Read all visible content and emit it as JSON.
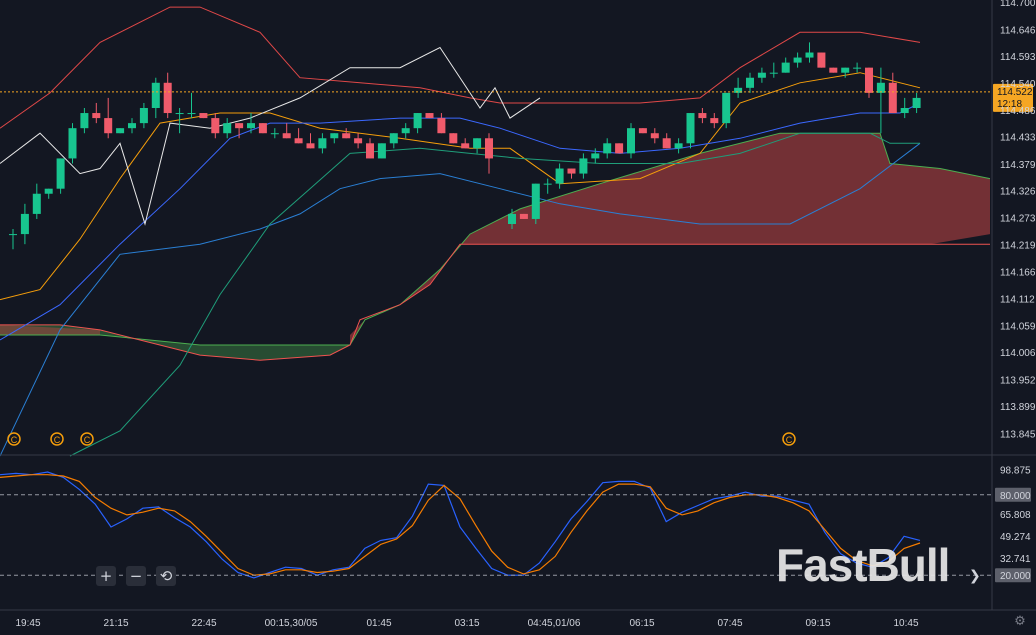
{
  "chart_data": [
    {
      "type": "candlestick",
      "title": "",
      "y_range": [
        113.8,
        114.72
      ],
      "y_ticks": [
        "114.700",
        "114.646",
        "114.593",
        "114.540",
        "114.486",
        "114.433",
        "114.379",
        "114.326",
        "114.273",
        "114.219",
        "114.166",
        "114.112",
        "114.059",
        "114.006",
        "113.952",
        "113.899",
        "113.845"
      ],
      "last_price": "114.522",
      "countdown": "12:18",
      "x_labels": [
        "19:45",
        "21:15",
        "22:45",
        "00:15,30/05",
        "01:45",
        "03:15",
        "04:45,01/06",
        "06:15",
        "07:45",
        "09:15",
        "10:45"
      ],
      "candles": [
        [
          114.24,
          114.25,
          114.21,
          114.24
        ],
        [
          114.24,
          114.3,
          114.22,
          114.28
        ],
        [
          114.28,
          114.34,
          114.27,
          114.32
        ],
        [
          114.32,
          114.33,
          114.31,
          114.33
        ],
        [
          114.33,
          114.39,
          114.32,
          114.39
        ],
        [
          114.39,
          114.46,
          114.38,
          114.45
        ],
        [
          114.45,
          114.49,
          114.44,
          114.48
        ],
        [
          114.48,
          114.5,
          114.46,
          114.47
        ],
        [
          114.47,
          114.51,
          114.43,
          114.44
        ],
        [
          114.44,
          114.45,
          114.44,
          114.45
        ],
        [
          114.45,
          114.47,
          114.44,
          114.46
        ],
        [
          114.46,
          114.5,
          114.45,
          114.49
        ],
        [
          114.49,
          114.55,
          114.47,
          114.54
        ],
        [
          114.54,
          114.56,
          114.47,
          114.48
        ],
        [
          114.48,
          114.49,
          114.44,
          114.48
        ],
        [
          114.48,
          114.52,
          114.47,
          114.48
        ],
        [
          114.48,
          114.48,
          114.47,
          114.47
        ],
        [
          114.47,
          114.48,
          114.43,
          114.44
        ],
        [
          114.44,
          114.47,
          114.43,
          114.46
        ],
        [
          114.46,
          114.46,
          114.43,
          114.45
        ],
        [
          114.45,
          114.48,
          114.44,
          114.46
        ],
        [
          114.46,
          114.46,
          114.44,
          114.44
        ],
        [
          114.44,
          114.45,
          114.43,
          114.44
        ],
        [
          114.44,
          114.46,
          114.43,
          114.43
        ],
        [
          114.43,
          114.45,
          114.42,
          114.42
        ],
        [
          114.42,
          114.44,
          114.41,
          114.41
        ],
        [
          114.41,
          114.44,
          114.4,
          114.43
        ],
        [
          114.43,
          114.44,
          114.42,
          114.44
        ],
        [
          114.44,
          114.45,
          114.43,
          114.43
        ],
        [
          114.43,
          114.44,
          114.41,
          114.42
        ],
        [
          114.42,
          114.43,
          114.39,
          114.39
        ],
        [
          114.39,
          114.42,
          114.39,
          114.42
        ],
        [
          114.42,
          114.44,
          114.41,
          114.44
        ],
        [
          114.44,
          114.46,
          114.43,
          114.45
        ],
        [
          114.45,
          114.48,
          114.44,
          114.48
        ],
        [
          114.48,
          114.48,
          114.47,
          114.47
        ],
        [
          114.47,
          114.48,
          114.44,
          114.44
        ],
        [
          114.44,
          114.44,
          114.42,
          114.42
        ],
        [
          114.42,
          114.43,
          114.41,
          114.41
        ],
        [
          114.41,
          114.43,
          114.4,
          114.43
        ],
        [
          114.43,
          114.44,
          114.36,
          114.39
        ],
        [
          114.26,
          114.29,
          114.25,
          114.28
        ],
        [
          114.28,
          114.28,
          114.27,
          114.27
        ],
        [
          114.27,
          114.34,
          114.26,
          114.34
        ],
        [
          114.34,
          114.35,
          114.32,
          114.34
        ],
        [
          114.34,
          114.38,
          114.33,
          114.37
        ],
        [
          114.37,
          114.37,
          114.35,
          114.36
        ],
        [
          114.36,
          114.4,
          114.35,
          114.39
        ],
        [
          114.39,
          114.41,
          114.38,
          114.4
        ],
        [
          114.4,
          114.43,
          114.39,
          114.42
        ],
        [
          114.42,
          114.42,
          114.4,
          114.4
        ],
        [
          114.4,
          114.46,
          114.39,
          114.45
        ],
        [
          114.45,
          114.45,
          114.44,
          114.44
        ],
        [
          114.44,
          114.45,
          114.42,
          114.43
        ],
        [
          114.43,
          114.44,
          114.41,
          114.41
        ],
        [
          114.41,
          114.43,
          114.4,
          114.42
        ],
        [
          114.42,
          114.48,
          114.41,
          114.48
        ],
        [
          114.48,
          114.49,
          114.46,
          114.47
        ],
        [
          114.47,
          114.48,
          114.45,
          114.46
        ],
        [
          114.46,
          114.52,
          114.45,
          114.52
        ],
        [
          114.52,
          114.55,
          114.51,
          114.53
        ],
        [
          114.53,
          114.56,
          114.52,
          114.55
        ],
        [
          114.55,
          114.57,
          114.54,
          114.56
        ],
        [
          114.56,
          114.58,
          114.55,
          114.56
        ],
        [
          114.56,
          114.59,
          114.56,
          114.58
        ],
        [
          114.58,
          114.6,
          114.57,
          114.59
        ],
        [
          114.59,
          114.62,
          114.58,
          114.6
        ],
        [
          114.6,
          114.6,
          114.57,
          114.57
        ],
        [
          114.57,
          114.57,
          114.56,
          114.56
        ],
        [
          114.56,
          114.57,
          114.55,
          114.57
        ],
        [
          114.57,
          114.58,
          114.56,
          114.57
        ],
        [
          114.57,
          114.57,
          114.51,
          114.52
        ],
        [
          114.52,
          114.57,
          114.44,
          114.54
        ],
        [
          114.54,
          114.56,
          114.48,
          114.48
        ],
        [
          114.48,
          114.51,
          114.47,
          114.49
        ],
        [
          114.49,
          114.52,
          114.48,
          114.51
        ]
      ]
    },
    {
      "type": "line",
      "title": "",
      "y_range": [
        0,
        100
      ],
      "y_ticks": [
        "98.875",
        "80.000",
        "65.808",
        "49.274",
        "32.741",
        "20.000"
      ],
      "levels": [
        80,
        20
      ],
      "series": [
        {
          "color": "#2962ff",
          "values": [
            95,
            96,
            95,
            97,
            93,
            84,
            73,
            56,
            62,
            70,
            71,
            63,
            56,
            45,
            32,
            22,
            18,
            22,
            26,
            25,
            20,
            24,
            26,
            40,
            46,
            48,
            64,
            88,
            87,
            56,
            40,
            25,
            20,
            20,
            29,
            45,
            62,
            75,
            89,
            90,
            90,
            85,
            60,
            67,
            72,
            77,
            79,
            82,
            79,
            79,
            76,
            73,
            52,
            36,
            29,
            26,
            33,
            49,
            46
          ]
        },
        {
          "color": "#f57c00",
          "values": [
            93,
            94,
            95,
            95,
            94,
            90,
            78,
            70,
            65,
            67,
            70,
            68,
            60,
            49,
            37,
            25,
            20,
            21,
            24,
            24,
            22,
            23,
            25,
            34,
            43,
            47,
            57,
            76,
            87,
            77,
            57,
            38,
            26,
            21,
            24,
            34,
            52,
            68,
            82,
            88,
            88,
            86,
            70,
            65,
            68,
            74,
            78,
            80,
            80,
            78,
            74,
            68,
            54,
            40,
            31,
            27,
            30,
            40,
            44
          ]
        }
      ]
    }
  ],
  "colors": {
    "background": "#131722",
    "up": "#26a69a",
    "up_fill": "#18c58f",
    "down": "#ef5350",
    "down_fill": "#f05b6b",
    "cloud_bull": "#4caf50",
    "cloud_bear": "#c24545",
    "price_tag": "#f5a623"
  },
  "controls": {
    "zoom_in": "+",
    "zoom_out": "−",
    "reset": "⟲"
  },
  "watermark": "FastBull"
}
